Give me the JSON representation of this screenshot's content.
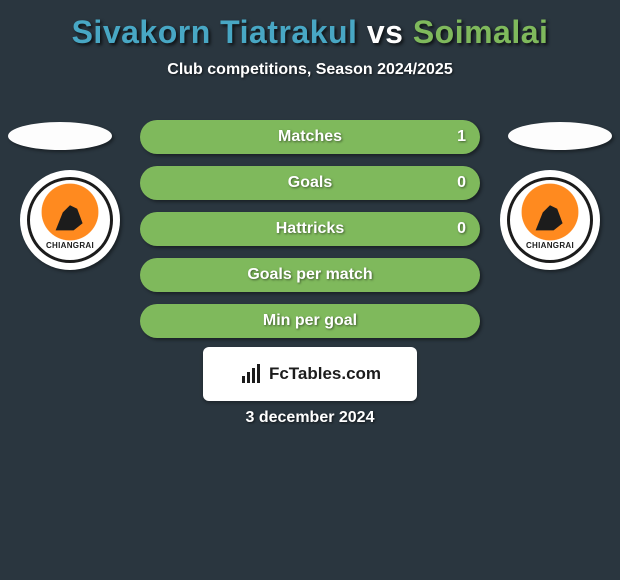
{
  "header": {
    "player1": "Sivakorn Tiatrakul",
    "player2": "Soimalai",
    "vs": " vs ",
    "player1_color": "#48a7c4",
    "player2_color": "#7fb95c",
    "subtitle": "Club competitions, Season 2024/2025"
  },
  "stats": [
    {
      "label": "Matches",
      "value_left": "",
      "value_right": "1",
      "fill_left_pct": 0,
      "fill_right_pct": 100
    },
    {
      "label": "Goals",
      "value_left": "",
      "value_right": "0",
      "fill_left_pct": 0,
      "fill_right_pct": 0
    },
    {
      "label": "Hattricks",
      "value_left": "",
      "value_right": "0",
      "fill_left_pct": 0,
      "fill_right_pct": 0
    },
    {
      "label": "Goals per match",
      "value_left": "",
      "value_right": "",
      "fill_left_pct": 0,
      "fill_right_pct": 0
    },
    {
      "label": "Min per goal",
      "value_left": "",
      "value_right": "",
      "fill_left_pct": 0,
      "fill_right_pct": 0
    }
  ],
  "style": {
    "bar_base_color": "#7fb95c",
    "bar_left_color": "#48a7c4",
    "bar_right_color": "#7fb95c",
    "background_color": "#2a363f"
  },
  "club": {
    "left_label": "CHIANGRAI",
    "right_label": "CHIANGRAI"
  },
  "footer": {
    "brand": "FcTables.com",
    "date": "3 december 2024"
  }
}
